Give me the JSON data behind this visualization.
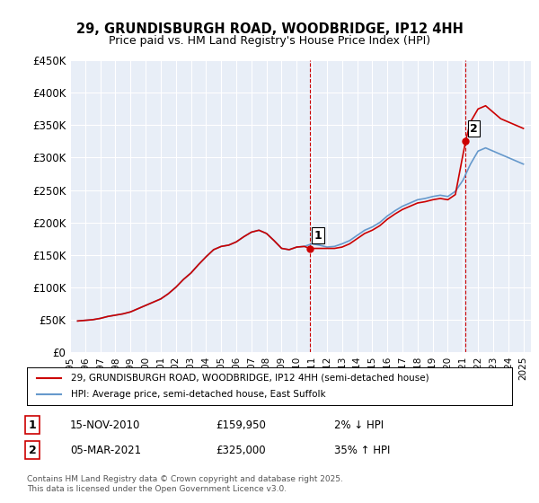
{
  "title_line1": "29, GRUNDISBURGH ROAD, WOODBRIDGE, IP12 4HH",
  "title_line2": "Price paid vs. HM Land Registry's House Price Index (HPI)",
  "ylabel_ticks": [
    "£0",
    "£50K",
    "£100K",
    "£150K",
    "£200K",
    "£250K",
    "£300K",
    "£350K",
    "£400K",
    "£450K"
  ],
  "ytick_values": [
    0,
    50000,
    100000,
    150000,
    200000,
    250000,
    300000,
    350000,
    400000,
    450000
  ],
  "ylim": [
    0,
    450000
  ],
  "xlim_start": 1995.0,
  "xlim_end": 2025.5,
  "xtick_years": [
    1995,
    1996,
    1997,
    1998,
    1999,
    2000,
    2001,
    2002,
    2003,
    2004,
    2005,
    2006,
    2007,
    2008,
    2009,
    2010,
    2011,
    2012,
    2013,
    2014,
    2015,
    2016,
    2017,
    2018,
    2019,
    2020,
    2021,
    2022,
    2023,
    2024,
    2025
  ],
  "hpi_color": "#6699cc",
  "price_color": "#cc0000",
  "background_plot": "#e8eef7",
  "background_fig": "#ffffff",
  "grid_color": "#ffffff",
  "sale1_x": 2010.87,
  "sale1_y": 159950,
  "sale1_label": "1",
  "sale2_x": 2021.17,
  "sale2_y": 325000,
  "sale2_label": "2",
  "sale1_date": "15-NOV-2010",
  "sale1_price": "£159,950",
  "sale1_hpi": "2% ↓ HPI",
  "sale2_date": "05-MAR-2021",
  "sale2_price": "£325,000",
  "sale2_hpi": "35% ↑ HPI",
  "legend_line1": "29, GRUNDISBURGH ROAD, WOODBRIDGE, IP12 4HH (semi-detached house)",
  "legend_line2": "HPI: Average price, semi-detached house, East Suffolk",
  "footnote": "Contains HM Land Registry data © Crown copyright and database right 2025.\nThis data is licensed under the Open Government Licence v3.0.",
  "hpi_data": {
    "years": [
      1995.5,
      1996.0,
      1996.5,
      1997.0,
      1997.5,
      1998.0,
      1998.5,
      1999.0,
      1999.5,
      2000.0,
      2000.5,
      2001.0,
      2001.5,
      2002.0,
      2002.5,
      2003.0,
      2003.5,
      2004.0,
      2004.5,
      2005.0,
      2005.5,
      2006.0,
      2006.5,
      2007.0,
      2007.5,
      2008.0,
      2008.5,
      2009.0,
      2009.5,
      2010.0,
      2010.5,
      2011.0,
      2011.5,
      2012.0,
      2012.5,
      2013.0,
      2013.5,
      2014.0,
      2014.5,
      2015.0,
      2015.5,
      2016.0,
      2016.5,
      2017.0,
      2017.5,
      2018.0,
      2018.5,
      2019.0,
      2019.5,
      2020.0,
      2020.5,
      2021.0,
      2021.5,
      2022.0,
      2022.5,
      2023.0,
      2023.5,
      2024.0,
      2024.5,
      2025.0
    ],
    "values": [
      48000,
      49000,
      50000,
      52000,
      55000,
      57000,
      59000,
      62000,
      67000,
      72000,
      77000,
      82000,
      90000,
      100000,
      112000,
      122000,
      135000,
      147000,
      158000,
      163000,
      165000,
      170000,
      178000,
      185000,
      188000,
      183000,
      172000,
      160000,
      158000,
      162000,
      163000,
      167000,
      165000,
      162000,
      163000,
      167000,
      172000,
      180000,
      188000,
      193000,
      200000,
      210000,
      218000,
      225000,
      230000,
      235000,
      237000,
      240000,
      242000,
      240000,
      248000,
      265000,
      290000,
      310000,
      315000,
      310000,
      305000,
      300000,
      295000,
      290000
    ]
  },
  "price_data": {
    "years": [
      1995.5,
      1996.0,
      1996.5,
      1997.0,
      1997.5,
      1998.0,
      1998.5,
      1999.0,
      1999.5,
      2000.0,
      2000.5,
      2001.0,
      2001.5,
      2002.0,
      2002.5,
      2003.0,
      2003.5,
      2004.0,
      2004.5,
      2005.0,
      2005.5,
      2006.0,
      2006.5,
      2007.0,
      2007.5,
      2008.0,
      2008.5,
      2009.0,
      2009.5,
      2010.0,
      2010.5,
      2010.87,
      2011.0,
      2011.5,
      2012.0,
      2012.5,
      2013.0,
      2013.5,
      2014.0,
      2014.5,
      2015.0,
      2015.5,
      2016.0,
      2016.5,
      2017.0,
      2017.5,
      2018.0,
      2018.5,
      2019.0,
      2019.5,
      2020.0,
      2020.5,
      2021.17,
      2021.5,
      2022.0,
      2022.5,
      2023.0,
      2023.5,
      2024.0,
      2024.5,
      2025.0
    ],
    "values": [
      48000,
      49000,
      50000,
      52000,
      55000,
      57000,
      59000,
      62000,
      67000,
      72000,
      77000,
      82000,
      90000,
      100000,
      112000,
      122000,
      135000,
      147000,
      158000,
      163000,
      165000,
      170000,
      178000,
      185000,
      188000,
      183000,
      172000,
      160000,
      158000,
      162000,
      163000,
      159950,
      159950,
      159950,
      159950,
      159950,
      162000,
      167000,
      175000,
      183000,
      188000,
      195000,
      205000,
      213000,
      220000,
      225000,
      230000,
      232000,
      235000,
      237000,
      235000,
      243000,
      325000,
      355000,
      375000,
      380000,
      370000,
      360000,
      355000,
      350000,
      345000
    ]
  }
}
